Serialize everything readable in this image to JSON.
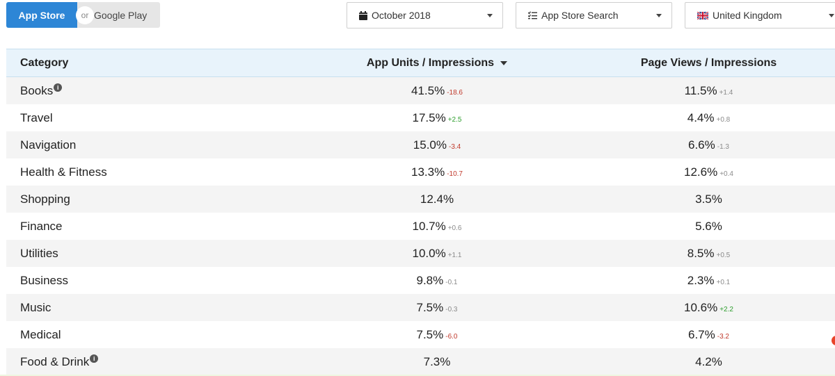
{
  "store_toggle": {
    "active": "App Store",
    "separator": "or",
    "inactive": "Google Play"
  },
  "filters": {
    "date": {
      "label": "October 2018",
      "icon": "calendar-icon"
    },
    "source": {
      "label": "App Store Search",
      "icon": "list-check-icon"
    },
    "country": {
      "label": "United Kingdom",
      "icon": "uk-flag-icon"
    }
  },
  "table": {
    "headers": {
      "category": "Category",
      "app_units": "App Units / Impressions",
      "page_views": "Page Views / Impressions"
    },
    "rows": [
      {
        "category": "Books",
        "info": true,
        "au": "41.5%",
        "au_delta": "-18.6",
        "au_tone": "neg",
        "pv": "11.5%",
        "pv_delta": "+1.4",
        "pv_tone": "neu"
      },
      {
        "category": "Travel",
        "info": false,
        "au": "17.5%",
        "au_delta": "+2.5",
        "au_tone": "pos",
        "pv": "4.4%",
        "pv_delta": "+0.8",
        "pv_tone": "neu"
      },
      {
        "category": "Navigation",
        "info": false,
        "au": "15.0%",
        "au_delta": "-3.4",
        "au_tone": "neg",
        "pv": "6.6%",
        "pv_delta": "-1.3",
        "pv_tone": "neu"
      },
      {
        "category": "Health & Fitness",
        "info": false,
        "au": "13.3%",
        "au_delta": "-10.7",
        "au_tone": "neg",
        "pv": "12.6%",
        "pv_delta": "+0.4",
        "pv_tone": "neu"
      },
      {
        "category": "Shopping",
        "info": false,
        "au": "12.4%",
        "au_delta": "",
        "au_tone": "neu",
        "pv": "3.5%",
        "pv_delta": "",
        "pv_tone": "neu"
      },
      {
        "category": "Finance",
        "info": false,
        "au": "10.7%",
        "au_delta": "+0.6",
        "au_tone": "neu",
        "pv": "5.6%",
        "pv_delta": "",
        "pv_tone": "neu"
      },
      {
        "category": "Utilities",
        "info": false,
        "au": "10.0%",
        "au_delta": "+1.1",
        "au_tone": "neu",
        "pv": "8.5%",
        "pv_delta": "+0.5",
        "pv_tone": "neu"
      },
      {
        "category": "Business",
        "info": false,
        "au": "9.8%",
        "au_delta": "-0.1",
        "au_tone": "neu",
        "pv": "2.3%",
        "pv_delta": "+0.1",
        "pv_tone": "neu"
      },
      {
        "category": "Music",
        "info": false,
        "au": "7.5%",
        "au_delta": "-0.3",
        "au_tone": "neu",
        "pv": "10.6%",
        "pv_delta": "+2.2",
        "pv_tone": "pos"
      },
      {
        "category": "Medical",
        "info": false,
        "au": "7.5%",
        "au_delta": "-6.0",
        "au_tone": "neg",
        "pv": "6.7%",
        "pv_delta": "-3.2",
        "pv_tone": "neg"
      },
      {
        "category": "Food & Drink",
        "info": true,
        "au": "7.3%",
        "au_delta": "",
        "au_tone": "neu",
        "pv": "4.2%",
        "pv_delta": "",
        "pv_tone": "neu"
      }
    ]
  },
  "colors": {
    "accent": "#2d86d6",
    "header_bg": "#e8f3fb",
    "negative": "#c0392b",
    "positive": "#2e9e2e",
    "neutral": "#8a8a8a"
  }
}
